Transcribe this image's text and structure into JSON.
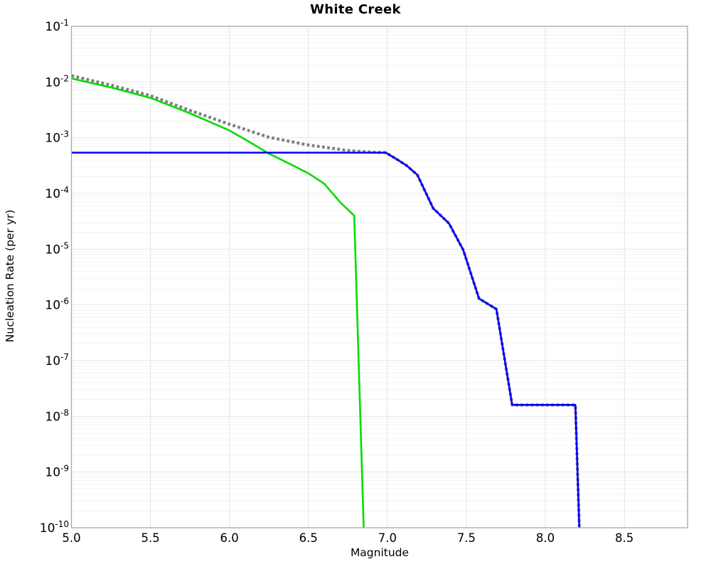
{
  "chart_data": {
    "type": "line",
    "title": "White Creek",
    "xlabel": "Magnitude",
    "ylabel": "Nucleation Rate (per yr)",
    "x_range": [
      5.0,
      8.9
    ],
    "y_log_range": [
      -10,
      -1
    ],
    "x_ticks": [
      5.0,
      5.5,
      6.0,
      6.5,
      7.0,
      7.5,
      8.0,
      8.5
    ],
    "y_tick_exponents": [
      -1,
      -2,
      -3,
      -4,
      -5,
      -6,
      -7,
      -8,
      -9,
      -10
    ],
    "grid": {
      "major_color": "#e4e4e4",
      "minor_color": "#f3f3f3",
      "frame_color": "#a8a8a8",
      "background": "#ffffff",
      "log_minor_horizontals": true,
      "vertical_minors": false
    },
    "legend_position": "none",
    "series": [
      {
        "name": "green-solid-curve",
        "color": "#00dd00",
        "style": "solid",
        "width": 2.6,
        "points": [
          [
            5.0,
            0.0116
          ],
          [
            5.25,
            0.008
          ],
          [
            5.5,
            0.0052
          ],
          [
            5.75,
            0.00275
          ],
          [
            6.0,
            0.00135
          ],
          [
            6.1,
            0.00093
          ],
          [
            6.25,
            0.00052
          ],
          [
            6.4,
            0.00032
          ],
          [
            6.5,
            0.00023
          ],
          [
            6.6,
            0.00015
          ],
          [
            6.7,
            7e-05
          ],
          [
            6.79,
            4e-05
          ],
          [
            6.85,
            1e-10
          ]
        ]
      },
      {
        "name": "gray-dotted-curve",
        "color": "#7f7f7f",
        "style": "dotted",
        "width": 4.2,
        "points": [
          [
            5.0,
            0.013
          ],
          [
            5.25,
            0.0088
          ],
          [
            5.5,
            0.0057
          ],
          [
            5.75,
            0.0031
          ],
          [
            6.0,
            0.00175
          ],
          [
            6.25,
            0.00102
          ],
          [
            6.5,
            0.00074
          ],
          [
            6.75,
            0.00059
          ],
          [
            6.9,
            0.00055
          ],
          [
            6.99,
            0.00054
          ],
          [
            7.06,
            0.00041
          ],
          [
            7.12,
            0.00032
          ],
          [
            7.19,
            0.000215
          ],
          [
            7.29,
            5.4e-05
          ],
          [
            7.39,
            2.9e-05
          ],
          [
            7.48,
            9.7e-06
          ],
          [
            7.58,
            1.3e-06
          ],
          [
            7.69,
            8.4e-07
          ],
          [
            7.79,
            1.6e-08
          ],
          [
            8.19,
            1.6e-08
          ],
          [
            8.215,
            1e-10
          ]
        ]
      },
      {
        "name": "blue-solid-curve",
        "color": "#0000ff",
        "style": "solid",
        "width": 2.6,
        "points": [
          [
            5.0,
            0.00054
          ],
          [
            6.99,
            0.00054
          ],
          [
            7.06,
            0.00041
          ],
          [
            7.12,
            0.00032
          ],
          [
            7.19,
            0.000215
          ],
          [
            7.29,
            5.4e-05
          ],
          [
            7.39,
            2.9e-05
          ],
          [
            7.48,
            9.7e-06
          ],
          [
            7.58,
            1.3e-06
          ],
          [
            7.69,
            8.4e-07
          ],
          [
            7.79,
            1.6e-08
          ],
          [
            8.19,
            1.6e-08
          ],
          [
            8.215,
            1e-10
          ]
        ]
      }
    ]
  }
}
